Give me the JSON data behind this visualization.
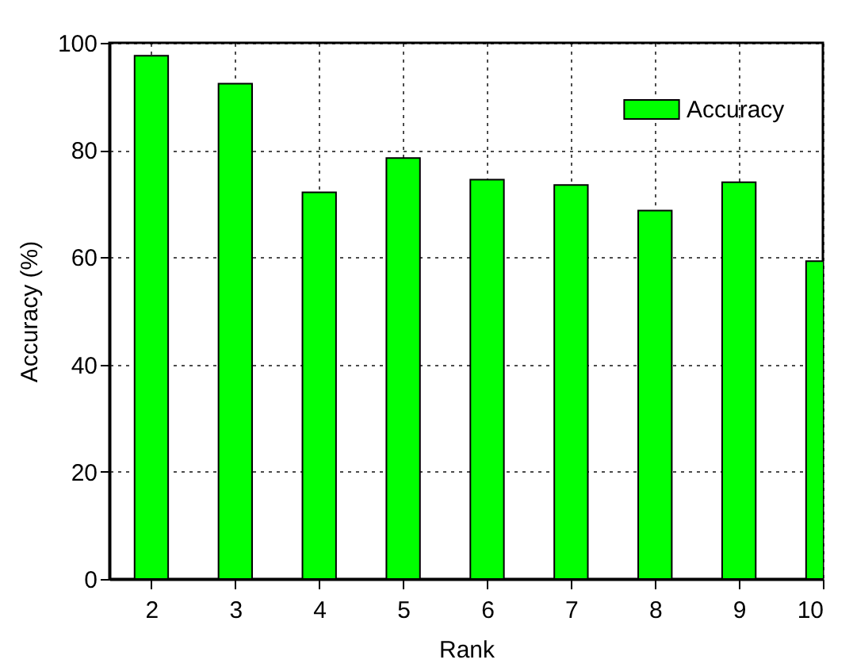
{
  "chart_data": {
    "type": "bar",
    "xlabel": "Rank",
    "ylabel": "Accuracy (%)",
    "x": [
      2,
      3,
      4,
      5,
      6,
      7,
      8,
      9,
      10
    ],
    "series": [
      {
        "name": "Accuracy",
        "color": "#00ff00",
        "values": [
          97.6,
          92.4,
          72.1,
          78.5,
          74.5,
          73.5,
          68.7,
          74.0,
          59.3
        ]
      }
    ],
    "xlim": [
      1.5,
      10
    ],
    "xticks": [
      2,
      3,
      4,
      5,
      6,
      7,
      8,
      9,
      10
    ],
    "ylim": [
      0,
      100
    ],
    "yticks": [
      0,
      20,
      40,
      60,
      80,
      100
    ],
    "grid": true,
    "legend": "top right"
  }
}
